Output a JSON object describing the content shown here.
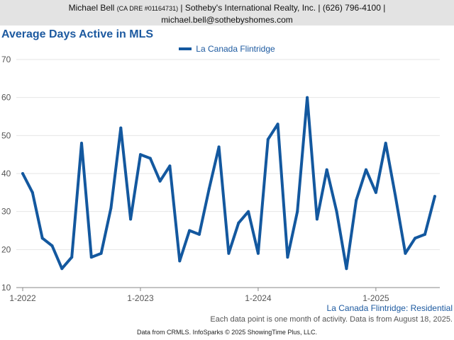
{
  "header": {
    "agent_name": "Michael Bell",
    "license": "(CA DRE #01164731)",
    "company_phone": "| Sotheby's International Realty, Inc. | (626) 796-4100 |",
    "email": "michael.bell@sothebyshomes.com"
  },
  "footer": {
    "region": "La Canada Flintridge: Residential",
    "note": "Each data point is one month of activity. Data is from August 18, 2025.",
    "source": "Data from CRMLS. InfoSparks © 2025 ShowingTime Plus, LLC."
  },
  "colors": {
    "line": "#13589f",
    "title": "#1d5aa0",
    "header_bg": "#e3e3e3"
  },
  "chart_data": {
    "type": "line",
    "title": "Average Days Active in MLS",
    "xlabel": "",
    "ylabel": "",
    "x_start": "2022-01",
    "x_ticks": [
      {
        "label": "1-2022",
        "index": 0
      },
      {
        "label": "1-2023",
        "index": 12
      },
      {
        "label": "1-2024",
        "index": 24
      },
      {
        "label": "1-2025",
        "index": 36
      }
    ],
    "ylim": [
      10,
      70
    ],
    "y_ticks": [
      10,
      20,
      30,
      40,
      50,
      60,
      70
    ],
    "grid": "horizontal",
    "legend": "top-center",
    "series": [
      {
        "name": "La Canada Flintridge",
        "values": [
          40,
          35,
          23,
          21,
          15,
          18,
          48,
          18,
          19,
          31,
          52,
          28,
          45,
          44,
          38,
          42,
          17,
          25,
          24,
          36,
          47,
          19,
          27,
          30,
          19,
          49,
          53,
          18,
          30,
          60,
          28,
          41,
          30,
          15,
          33,
          41,
          35,
          48,
          34,
          19,
          23,
          24,
          34
        ]
      }
    ]
  }
}
